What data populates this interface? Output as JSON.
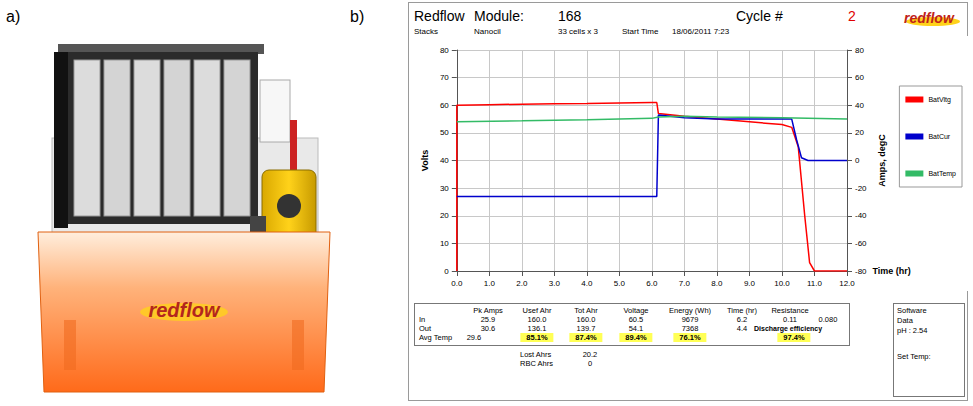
{
  "panels": {
    "a": "a)",
    "b": "b)"
  },
  "photo": {
    "logo": "redflow"
  },
  "header": {
    "title": "Redflow",
    "module_label": "Module:",
    "module": "168",
    "cycle_label": "Cycle #",
    "cycle": "2",
    "stacks_label": "Stacks",
    "stacks": "Nanocil",
    "cells": "33 cells x 3",
    "start_label": "Start Time",
    "start": "18/06/2011 7:23",
    "logo": "redflow"
  },
  "chart_data": {
    "type": "line",
    "x_label": "Time (hr)",
    "y_label": "Volts",
    "y2_label": "Amps, degC",
    "xlim": [
      0,
      12
    ],
    "xticks": [
      {
        "value": 0,
        "label": "0.0"
      },
      {
        "value": 1,
        "label": "1.0"
      },
      {
        "value": 2,
        "label": "2.0"
      },
      {
        "value": 3,
        "label": "3.0"
      },
      {
        "value": 4,
        "label": "4.0"
      },
      {
        "value": 5,
        "label": "5.0"
      },
      {
        "value": 6,
        "label": "6.0"
      },
      {
        "value": 7,
        "label": "7.0"
      },
      {
        "value": 8,
        "label": "8.0"
      },
      {
        "value": 9,
        "label": "9.0"
      },
      {
        "value": 10,
        "label": "10.0"
      },
      {
        "value": 11,
        "label": "11.0"
      },
      {
        "value": 12,
        "label": "12.0"
      }
    ],
    "ylim": [
      0,
      80
    ],
    "yticks": [
      0,
      10,
      20,
      30,
      40,
      50,
      60,
      70,
      80
    ],
    "y2lim": [
      -80,
      80
    ],
    "y2ticks": [
      -80,
      -60,
      -40,
      -20,
      0,
      20,
      40,
      60,
      80
    ],
    "grid": true,
    "legend": "right",
    "series": [
      {
        "name": "BatVltg",
        "color": "#ff0000",
        "x": [
          0,
          0,
          1,
          2,
          3,
          4,
          5,
          6,
          6.15,
          6.2,
          7,
          8,
          9,
          10,
          10.3,
          10.5,
          10.7,
          10.85,
          11,
          12
        ],
        "values": [
          0,
          60,
          60.2,
          60.4,
          60.5,
          60.6,
          60.8,
          61,
          61,
          57,
          56,
          55,
          54,
          53,
          52,
          45,
          20,
          3,
          0,
          0
        ]
      },
      {
        "name": "BatCur",
        "color": "#0000cc",
        "axis": "y2",
        "x": [
          0,
          6.15,
          6.2,
          7,
          8,
          9,
          10,
          10.3,
          10.45,
          10.6,
          10.8,
          12
        ],
        "values": [
          -26,
          -26,
          33,
          31,
          30,
          30,
          30,
          30,
          15,
          2,
          0,
          0
        ]
      },
      {
        "name": "BatTemp",
        "color": "#33bb66",
        "axis": "y2",
        "x": [
          0,
          2,
          4,
          6,
          6.2,
          7,
          8,
          10,
          12
        ],
        "values": [
          28,
          28.7,
          29.5,
          30.5,
          31.5,
          32,
          31.5,
          31,
          30
        ]
      }
    ]
  },
  "table": {
    "columns": [
      "Pk Amps",
      "Usef Ahr",
      "Tot Ahr",
      "Voltage",
      "Energy (Wh)",
      "Time (hr)",
      "Resistance"
    ],
    "rows": [
      {
        "label": "In",
        "cells": [
          "25.9",
          "160.0",
          "160.0",
          "60.5",
          "9679",
          "6.2",
          "0.11",
          "0.080"
        ]
      },
      {
        "label": "Out",
        "cells": [
          "30.6",
          "136.1",
          "139.7",
          "54.1",
          "7368",
          "4.4"
        ]
      },
      {
        "label": "Avg Temp",
        "cells": [
          "29.6",
          "85.1%",
          "87.4%",
          "89.4%",
          "76.1%"
        ]
      }
    ],
    "discharge_efficiency": {
      "label": "Discharge efficiency",
      "value": "97.4%"
    },
    "extra": [
      {
        "label": "Lost Ahrs",
        "value": "20.2"
      },
      {
        "label": "RBC Ahrs",
        "value": "0"
      }
    ]
  },
  "info_box": {
    "lines": [
      "Software",
      "Data",
      "pH : 2.54"
    ],
    "set_temp": "Set Temp:"
  }
}
